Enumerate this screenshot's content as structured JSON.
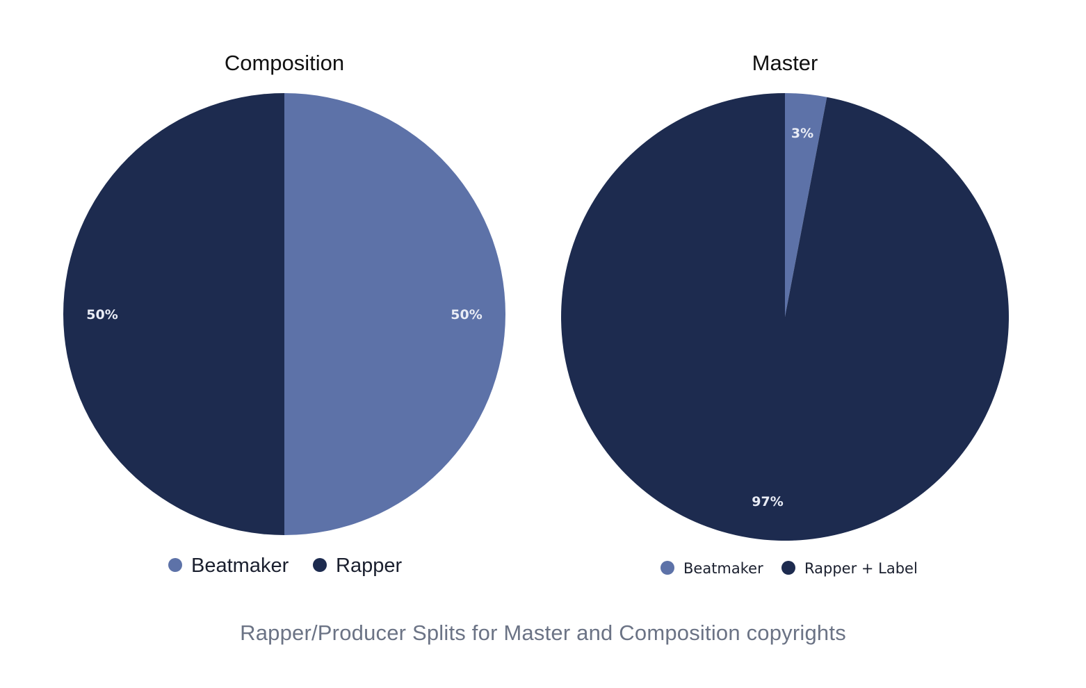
{
  "caption": "Rapper/Producer Splits for Master and Composition copyrights",
  "colors": {
    "light_slice": "#5d72a8",
    "dark_slice": "#1d2b4f",
    "caption": "#6b7385"
  },
  "chart_data": [
    {
      "type": "pie",
      "title": "Composition",
      "slices": [
        {
          "label": "Beatmaker",
          "value": 50,
          "display": "50%",
          "color": "#5d72a8"
        },
        {
          "label": "Rapper",
          "value": 50,
          "display": "50%",
          "color": "#1d2b4f"
        }
      ],
      "legend": {
        "position": "bottom",
        "items": [
          "Beatmaker",
          "Rapper"
        ]
      }
    },
    {
      "type": "pie",
      "title": "Master",
      "slices": [
        {
          "label": "Beatmaker",
          "value": 3,
          "display": "3%",
          "color": "#5d72a8"
        },
        {
          "label": "Rapper + Label",
          "value": 97,
          "display": "97%",
          "color": "#1d2b4f"
        }
      ],
      "legend": {
        "position": "bottom",
        "items": [
          "Beatmaker",
          "Rapper + Label"
        ]
      }
    }
  ]
}
